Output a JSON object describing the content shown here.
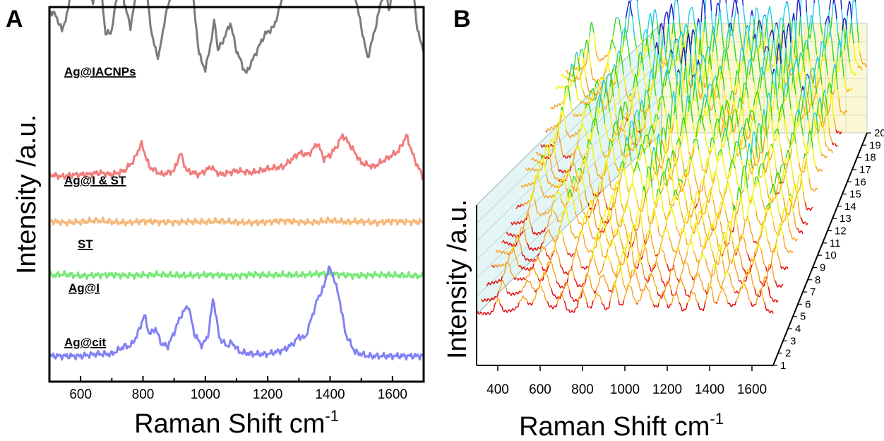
{
  "panels": {
    "a": {
      "letter": "A"
    },
    "b": {
      "letter": "B"
    }
  },
  "chart_data": [
    {
      "panel": "A",
      "type": "line",
      "xlabel": "Raman Shift cm",
      "xlabel_superscript": "-1",
      "ylabel": "Intensity /a.u.",
      "xlim": [
        500,
        1700
      ],
      "x_ticks": [
        "600",
        "800",
        "1000",
        "1200",
        "1400",
        "1600"
      ],
      "y_ticks_labeled": false,
      "grid": false,
      "series": [
        {
          "name": "Ag@IACNPs",
          "color": "#7b7b7b",
          "baseline": 7.4,
          "x": [
            500,
            520,
            540,
            560,
            580,
            600,
            620,
            640,
            660,
            680,
            700,
            720,
            730,
            740,
            760,
            780,
            795,
            810,
            830,
            850,
            870,
            890,
            910,
            925,
            940,
            960,
            980,
            1000,
            1020,
            1030,
            1040,
            1060,
            1080,
            1100,
            1130,
            1160,
            1190,
            1220,
            1250,
            1280,
            1300,
            1320,
            1340,
            1360,
            1380,
            1400,
            1420,
            1440,
            1460,
            1480,
            1500,
            1520,
            1540,
            1560,
            1575,
            1590,
            1610,
            1630,
            1645,
            1660,
            1680,
            1700
          ],
          "y": [
            2.0,
            1.9,
            1.5,
            2.0,
            3.5,
            4.2,
            2.8,
            2.2,
            3.1,
            1.4,
            1.5,
            2.6,
            3.3,
            2.2,
            1.6,
            2.5,
            4.8,
            2.6,
            1.3,
            0.8,
            1.8,
            2.4,
            4.8,
            8.0,
            3.9,
            2.4,
            0.9,
            0.5,
            1.3,
            1.8,
            1.0,
            1.3,
            1.7,
            1.0,
            0.4,
            0.9,
            1.4,
            1.6,
            2.4,
            3.0,
            4.0,
            5.6,
            4.8,
            4.6,
            4.4,
            3.4,
            3.0,
            3.7,
            2.9,
            2.4,
            1.6,
            0.8,
            1.4,
            2.1,
            2.6,
            2.0,
            3.1,
            4.6,
            5.3,
            3.1,
            1.5,
            1.0
          ]
        },
        {
          "name": "Ag@I & ST",
          "color": "#f07c7c",
          "baseline": 5.05,
          "x": [
            500,
            540,
            580,
            620,
            660,
            700,
            740,
            770,
            795,
            820,
            860,
            900,
            920,
            940,
            980,
            1020,
            1030,
            1050,
            1100,
            1150,
            1200,
            1250,
            1300,
            1330,
            1360,
            1380,
            1400,
            1420,
            1440,
            1460,
            1500,
            1540,
            1580,
            1620,
            1645,
            1670,
            1700
          ],
          "y": [
            0.2,
            0.15,
            0.2,
            0.2,
            0.25,
            0.2,
            0.3,
            0.55,
            1.0,
            0.4,
            0.2,
            0.3,
            0.75,
            0.3,
            0.2,
            0.4,
            0.3,
            0.2,
            0.3,
            0.25,
            0.35,
            0.4,
            0.75,
            0.7,
            1.0,
            0.6,
            0.7,
            0.9,
            1.2,
            1.0,
            0.5,
            0.4,
            0.6,
            0.8,
            1.2,
            0.6,
            0.1
          ]
        },
        {
          "name": "ST",
          "color": "#f5b87a",
          "baseline": 3.95,
          "x": [
            500,
            550,
            600,
            650,
            700,
            750,
            800,
            850,
            900,
            950,
            1000,
            1050,
            1100,
            1150,
            1200,
            1250,
            1300,
            1350,
            1400,
            1450,
            1500,
            1550,
            1600,
            1650,
            1700
          ],
          "y": [
            0.12,
            0.08,
            0.1,
            0.14,
            0.1,
            0.08,
            0.12,
            0.1,
            0.09,
            0.11,
            0.1,
            0.12,
            0.09,
            0.08,
            0.1,
            0.13,
            0.1,
            0.09,
            0.14,
            0.1,
            0.11,
            0.08,
            0.12,
            0.1,
            0.1
          ]
        },
        {
          "name": "Ag@I",
          "color": "#78e878",
          "baseline": 2.6,
          "x": [
            500,
            550,
            600,
            650,
            700,
            750,
            800,
            850,
            900,
            950,
            1000,
            1050,
            1100,
            1150,
            1200,
            1250,
            1300,
            1350,
            1400,
            1450,
            1500,
            1550,
            1600,
            1650,
            1700
          ],
          "y": [
            0.1,
            0.12,
            0.08,
            0.1,
            0.11,
            0.09,
            0.1,
            0.12,
            0.1,
            0.09,
            0.11,
            0.1,
            0.08,
            0.12,
            0.1,
            0.11,
            0.1,
            0.13,
            0.14,
            0.1,
            0.09,
            0.11,
            0.1,
            0.09,
            0.08
          ]
        },
        {
          "name": "Ag@cit",
          "color": "#8282f5",
          "baseline": 0.6,
          "x": [
            500,
            600,
            650,
            700,
            740,
            760,
            780,
            805,
            820,
            840,
            860,
            880,
            900,
            920,
            945,
            965,
            990,
            1010,
            1025,
            1045,
            1070,
            1085,
            1110,
            1150,
            1200,
            1250,
            1280,
            1300,
            1320,
            1340,
            1360,
            1380,
            1395,
            1410,
            1430,
            1450,
            1480,
            1520,
            1560,
            1600,
            1650,
            1700
          ],
          "y": [
            0.05,
            0.05,
            0.1,
            0.1,
            0.3,
            0.3,
            0.55,
            1.1,
            0.6,
            0.75,
            0.35,
            0.3,
            0.65,
            1.05,
            1.35,
            0.6,
            0.3,
            0.6,
            1.55,
            0.5,
            0.3,
            0.4,
            0.15,
            0.1,
            0.1,
            0.2,
            0.35,
            0.55,
            0.5,
            1.0,
            1.5,
            1.8,
            2.3,
            2.1,
            1.5,
            0.6,
            0.15,
            0.05,
            0.05,
            0.05,
            0.05,
            0.05
          ]
        }
      ]
    },
    {
      "panel": "B",
      "type": "line",
      "projection": "3d-waterfall",
      "xlabel": "Raman Shift cm",
      "xlabel_superscript": "-1",
      "ylabel": "Intensity /a.u.",
      "xlim": [
        300,
        1700
      ],
      "x_ticks": [
        "400",
        "600",
        "800",
        "1000",
        "1200",
        "1400",
        "1600"
      ],
      "depth_ticks": [
        "1",
        "2",
        "3",
        "4",
        "5",
        "6",
        "7",
        "8",
        "9",
        "10",
        "11",
        "12",
        "13",
        "14",
        "15",
        "16",
        "17",
        "18",
        "19",
        "20"
      ],
      "spectrum_count": 20,
      "wall_colors": {
        "back": "#fbf8d6",
        "left": "#e3f5f5"
      },
      "colormap": [
        "#e60000",
        "#f7a21a",
        "#f3f300",
        "#2fd81e",
        "#22cde6",
        "#1a1acc"
      ],
      "peak_positions": [
        400,
        520,
        600,
        700,
        800,
        870,
        950,
        1020,
        1100,
        1180,
        1240,
        1320,
        1400,
        1460,
        1560,
        1640
      ],
      "peak_heights": [
        1.3,
        1.0,
        1.9,
        1.5,
        2.2,
        1.8,
        2.5,
        2.1,
        1.9,
        1.6,
        1.8,
        2.0,
        2.6,
        1.8,
        2.2,
        1.9
      ]
    }
  ]
}
